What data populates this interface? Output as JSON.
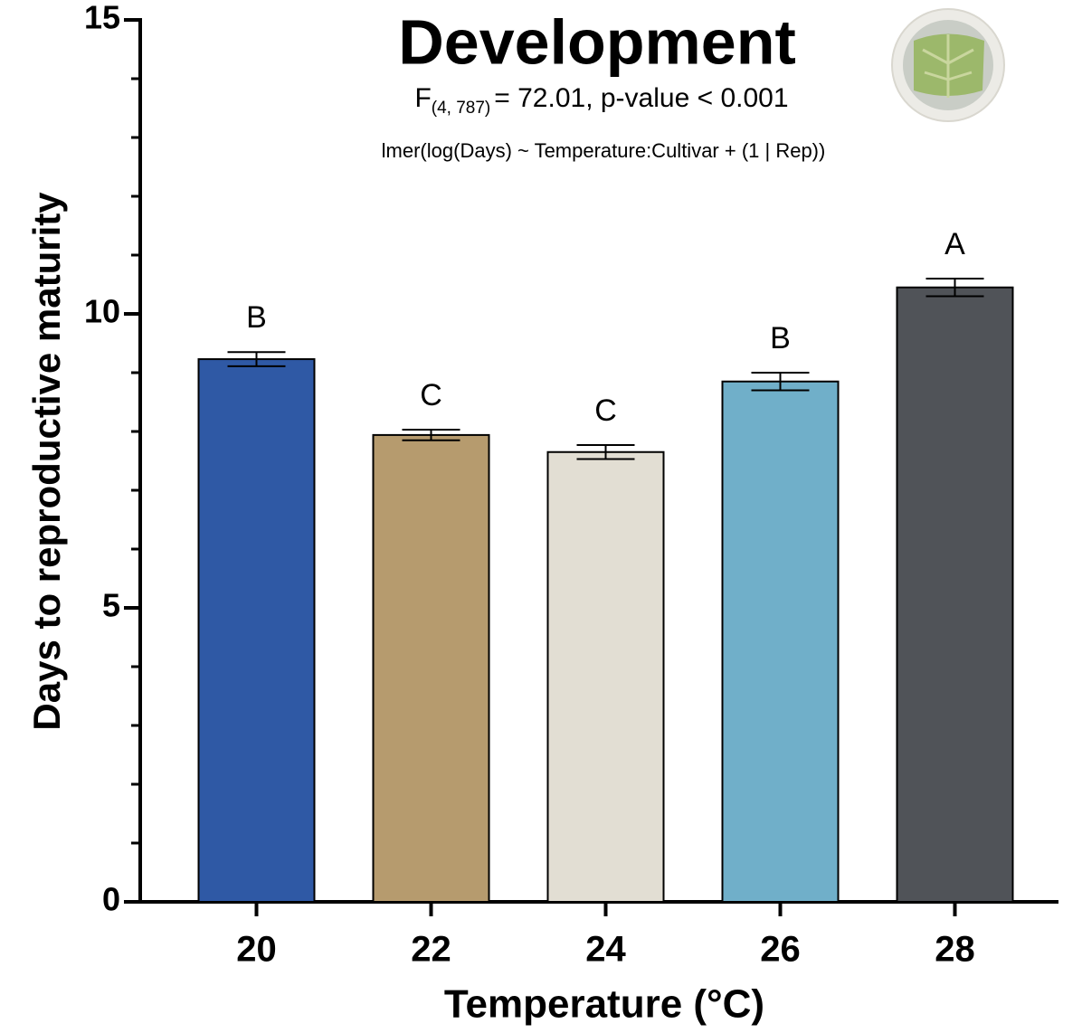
{
  "chart_data": {
    "type": "bar",
    "title": "Development",
    "stat_prefix": "F",
    "stat_subscript": "(4, 787)",
    "stat_rest": "= 72.01, p-value < 0.001",
    "model": "lmer(log(Days) ~ Temperature:Cultivar + (1 | Rep))",
    "x_label": "Temperature (°C)",
    "y_label": "Days to reproductive maturity",
    "categories": [
      "20",
      "22",
      "24",
      "26",
      "28"
    ],
    "values": [
      9.23,
      7.94,
      7.65,
      8.85,
      10.45
    ],
    "errors": [
      0.12,
      0.09,
      0.12,
      0.15,
      0.15
    ],
    "letters": [
      "B",
      "C",
      "C",
      "B",
      "A"
    ],
    "colors": [
      "#2f59a5",
      "#b69b6e",
      "#e2ded3",
      "#70afc9",
      "#505358"
    ],
    "ylim": [
      0,
      15
    ],
    "yticks": [
      0,
      5,
      10,
      15
    ],
    "minor_yticks": [
      1,
      2,
      3,
      4,
      6,
      7,
      8,
      9,
      11,
      12,
      13,
      14
    ],
    "grid": false
  }
}
